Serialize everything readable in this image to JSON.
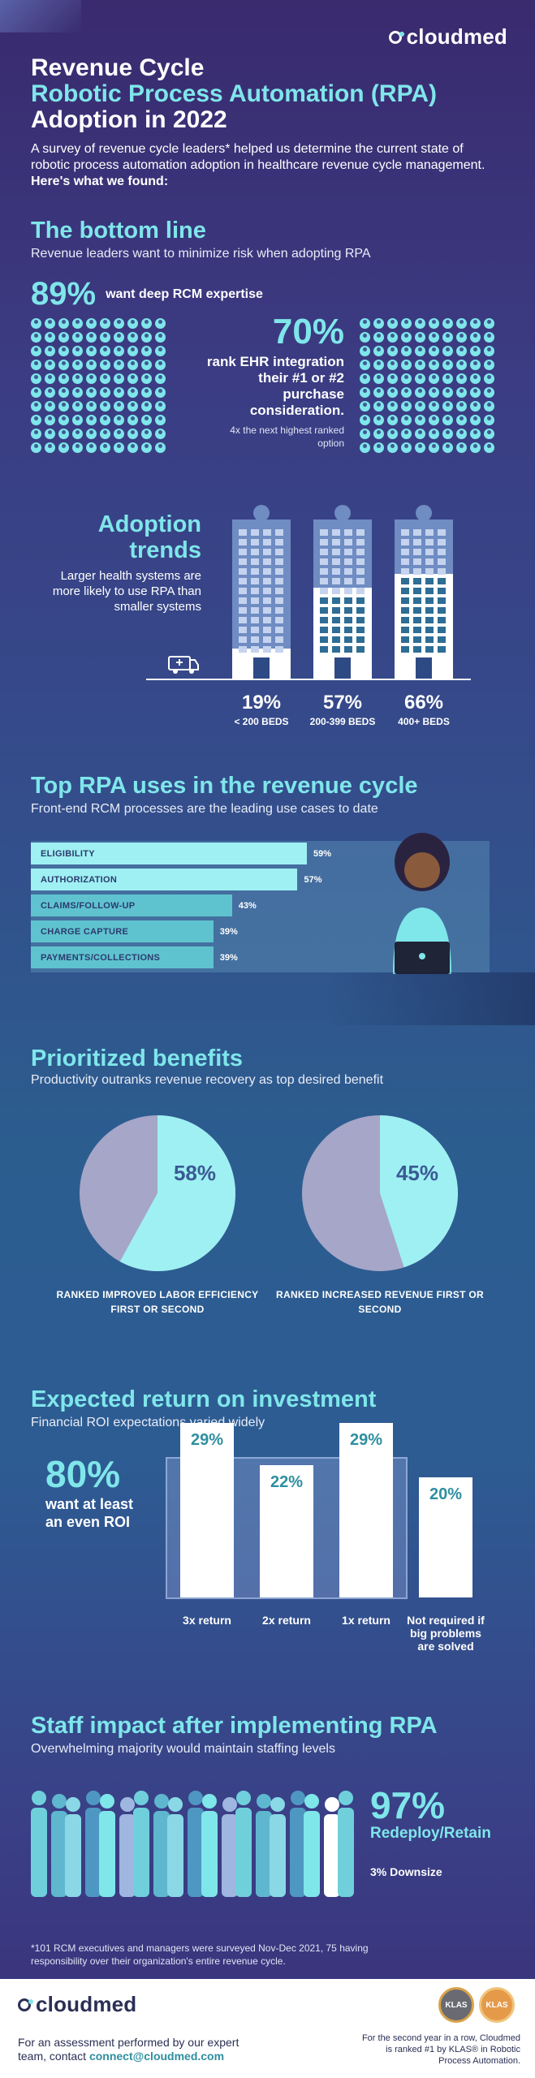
{
  "brand": {
    "name": "cloudmed"
  },
  "header": {
    "title_line1": "Revenue Cycle",
    "title_line2": "Robotic Process Automation (RPA)",
    "title_line3": "Adoption in 2022",
    "intro": "A survey of revenue cycle leaders* helped us determine the current state of robotic process automation adoption in healthcare revenue cycle management.",
    "intro_bold": "Here's what we found:"
  },
  "bottom_line": {
    "title": "The bottom line",
    "subtitle": "Revenue leaders want to minimize risk when adopting RPA",
    "stat1_value": "89%",
    "stat1_text": "want deep RCM expertise",
    "stat2_value": "70%",
    "stat2_text": "rank EHR integration their #1 or #2 purchase consideration.",
    "stat2_note": "4x the next highest ranked option"
  },
  "adoption": {
    "title": "Adoption trends",
    "subtitle": "Larger health systems are more likely to use RPA than smaller systems"
  },
  "rpa_uses": {
    "title": "Top RPA uses in the revenue cycle",
    "subtitle": "Front-end RCM processes are the leading use cases to date"
  },
  "benefits": {
    "title": "Prioritized benefits",
    "subtitle": "Productivity outranks revenue recovery as top desired benefit"
  },
  "roi": {
    "title": "Expected return on investment",
    "subtitle": "Financial ROI expectations varied widely",
    "stat_value": "80%",
    "stat_text": "want at least an even ROI"
  },
  "staff": {
    "title": "Staff impact after implementing RPA",
    "subtitle": "Overwhelming majority would maintain staffing levels",
    "stat_value": "97%",
    "stat_text": "Redeploy/Retain",
    "stat2": "3% Downsize"
  },
  "footnote": "*101 RCM executives and managers were surveyed Nov-Dec 2021, 75 having responsibility over their organization's entire revenue cycle.",
  "footer": {
    "cta": "For an assessment performed by our expert team, contact",
    "email": "connect@cloudmed.com",
    "klas_text": "For the second year in a row, Cloudmed is ranked #1 by KLAS® in Robotic Process Automation.",
    "badge1": "KLAS",
    "badge2": "KLAS"
  },
  "colors": {
    "teal": "#7fe6ea",
    "bg_top": "#3a2a6e",
    "bg_mid": "#2c5d8f",
    "dim": "#8c93bf"
  },
  "chart_data": [
    {
      "type": "bar",
      "title": "Adoption trends",
      "categories": [
        "< 200 BEDS",
        "200-399 BEDS",
        "400+ BEDS"
      ],
      "values": [
        19,
        57,
        66
      ],
      "labels": [
        "19%",
        "57%",
        "66%"
      ],
      "ylim": [
        0,
        100
      ]
    },
    {
      "type": "bar",
      "orientation": "horizontal",
      "title": "Top RPA uses in the revenue cycle",
      "categories": [
        "ELIGIBILITY",
        "AUTHORIZATION",
        "CLAIMS/FOLLOW-UP",
        "CHARGE CAPTURE",
        "PAYMENTS/COLLECTIONS"
      ],
      "values": [
        59,
        57,
        43,
        39,
        39
      ],
      "labels": [
        "59%",
        "57%",
        "43%",
        "39%",
        "39%"
      ]
    },
    {
      "type": "pie",
      "values": [
        58,
        42
      ],
      "label": "58%",
      "caption": "RANKED IMPROVED LABOR EFFICIENCY FIRST OR SECOND"
    },
    {
      "type": "pie",
      "values": [
        45,
        55
      ],
      "label": "45%",
      "caption": "RANKED INCREASED REVENUE FIRST OR SECOND"
    },
    {
      "type": "bar",
      "title": "Expected return on investment",
      "categories": [
        "3x return",
        "2x return",
        "1x return",
        "Not required if big problems are solved"
      ],
      "values": [
        29,
        22,
        29,
        20
      ],
      "labels": [
        "29%",
        "22%",
        "29%",
        "20%"
      ]
    }
  ]
}
